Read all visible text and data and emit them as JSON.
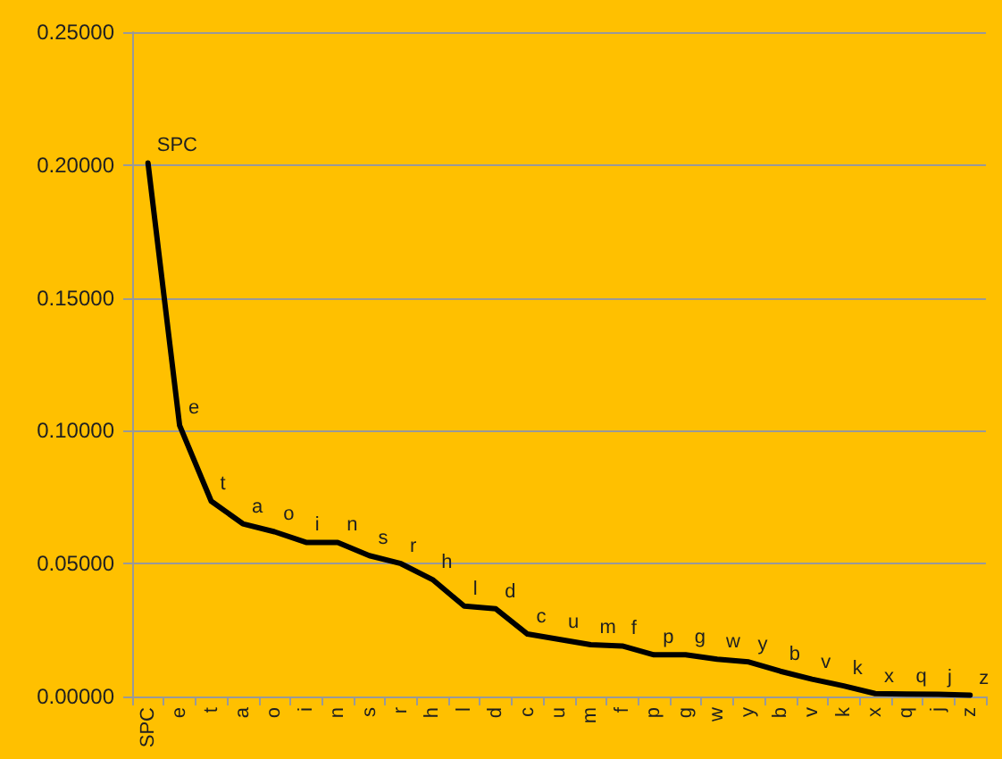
{
  "chart_data": {
    "type": "line",
    "categories": [
      "SPC",
      "e",
      "t",
      "a",
      "o",
      "i",
      "n",
      "s",
      "r",
      "h",
      "l",
      "d",
      "c",
      "u",
      "m",
      "f",
      "p",
      "g",
      "w",
      "y",
      "b",
      "v",
      "k",
      "x",
      "q",
      "j",
      "z"
    ],
    "series": [
      {
        "color": "#000000",
        "values": [
          0.2008,
          0.102,
          0.0735,
          0.065,
          0.062,
          0.058,
          0.058,
          0.053,
          0.05,
          0.044,
          0.034,
          0.033,
          0.0235,
          0.0215,
          0.0195,
          0.019,
          0.0157,
          0.0157,
          0.014,
          0.013,
          0.0095,
          0.0065,
          0.004,
          0.0011,
          0.0009,
          0.0008,
          0.0005
        ],
        "value_labels": [
          "SPC",
          "e",
          "t",
          "a",
          "o",
          "i",
          "n",
          "s",
          "r",
          "h",
          "l",
          "d",
          "c",
          "u",
          "m",
          "f",
          "p",
          "g",
          "w",
          "y",
          "b",
          "v",
          "k",
          "x",
          "q",
          "j",
          "z"
        ]
      }
    ],
    "ylim": [
      0,
      0.25
    ],
    "yticks": [
      {
        "value": 0,
        "label": "0.00000"
      },
      {
        "value": 0.05,
        "label": "0.05000"
      },
      {
        "value": 0.1,
        "label": "0.10000"
      },
      {
        "value": 0.15,
        "label": "0.15000"
      },
      {
        "value": 0.2,
        "label": "0.20000"
      },
      {
        "value": 0.25,
        "label": "0.25000"
      }
    ],
    "grid": "y",
    "marker": "none",
    "line_style": "solid"
  }
}
